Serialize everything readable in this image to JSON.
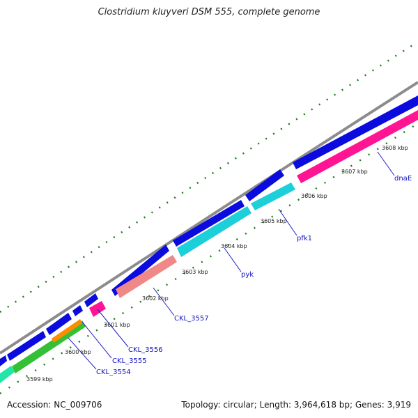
{
  "title": "Clostridium kluyveri DSM 555, complete genome",
  "footer": {
    "accession": "Accession: NC_009706",
    "summary": "Topology: circular; Length: 3,964,618 bp; Genes: 3,919"
  },
  "colors": {
    "backbone": "#8c8c8c",
    "forward": "#0b0bdd",
    "reverse_magenta": "#ff1493",
    "reverse_cyan": "#1ccfd8",
    "reverse_salmon": "#f08888",
    "reverse_green": "#34c034",
    "reverse_orange": "#ff8c00",
    "reverse_teal": "#22e6a8",
    "ticks": "#1a7a1a",
    "label_line": "#2020c0"
  },
  "ticks": [
    "3599 kbp",
    "3600 kbp",
    "3601 kbp",
    "3602 kbp",
    "3603 kbp",
    "3604 kbp",
    "3605 kbp",
    "3606 kbp",
    "3607 kbp",
    "3608 kbp"
  ],
  "gene_labels": [
    "CKL_3554",
    "CKL_3555",
    "CKL_3556",
    "CKL_3557",
    "pyk",
    "pfk1",
    "dnaE"
  ]
}
